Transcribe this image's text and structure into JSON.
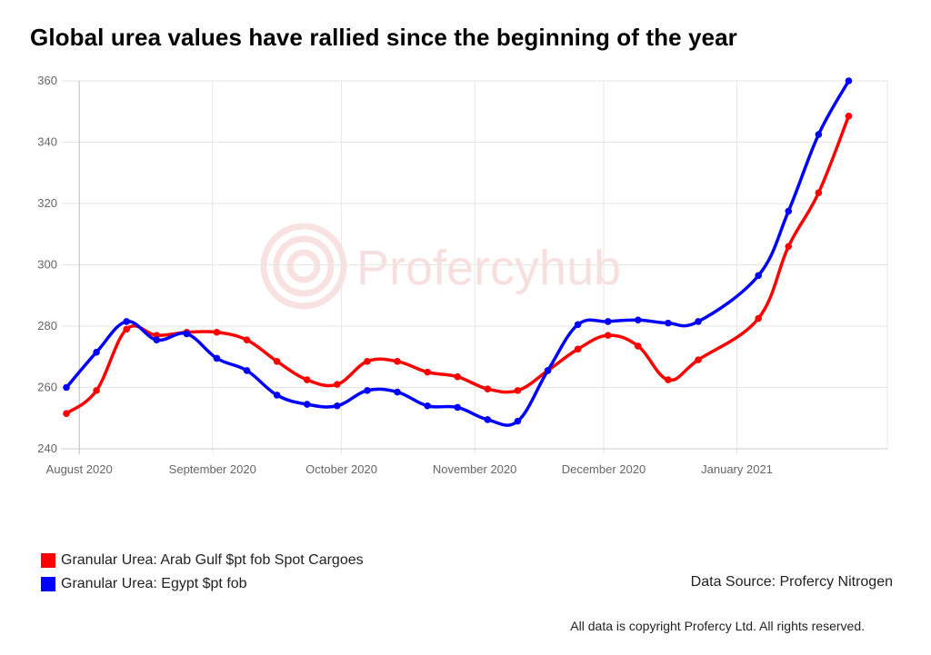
{
  "colors": {
    "arab_gulf": "#ff0000",
    "egypt": "#0000ff",
    "grid": "#e6e6e6",
    "watermark": "#f2c6c6"
  },
  "watermark": "Profercyhub",
  "source": "Data Source: Profercy Nitrogen",
  "copyright": "All data is copyright Profercy Ltd. All rights reserved.",
  "chart_data": {
    "type": "line",
    "title": "Global urea values have rallied since the beginning of the year",
    "xlabel": "",
    "ylabel": "",
    "ylim": [
      240,
      360
    ],
    "yticks": [
      240,
      260,
      280,
      300,
      320,
      340,
      360
    ],
    "x_tick_labels": [
      "August 2020",
      "September 2020",
      "October 2020",
      "November 2020",
      "December 2020",
      "January 2021"
    ],
    "x_tick_dates": [
      "2020-08-01",
      "2020-09-01",
      "2020-10-01",
      "2020-11-01",
      "2020-12-01",
      "2021-01-01"
    ],
    "xlim": [
      "2020-07-29",
      "2021-02-05"
    ],
    "grid": true,
    "legend_position": "bottom-left",
    "series": [
      {
        "name": "Granular Urea: Arab Gulf $pt fob Spot Cargoes",
        "color": "#ff0000",
        "points": [
          [
            "2020-07-29",
            251.5
          ],
          [
            "2020-08-05",
            259
          ],
          [
            "2020-08-12",
            279
          ],
          [
            "2020-08-19",
            277
          ],
          [
            "2020-08-26",
            278
          ],
          [
            "2020-09-02",
            278
          ],
          [
            "2020-09-09",
            275.5
          ],
          [
            "2020-09-16",
            268.5
          ],
          [
            "2020-09-23",
            262.5
          ],
          [
            "2020-09-30",
            261
          ],
          [
            "2020-10-07",
            268.5
          ],
          [
            "2020-10-14",
            268.5
          ],
          [
            "2020-10-21",
            265
          ],
          [
            "2020-10-28",
            263.5
          ],
          [
            "2020-11-04",
            259.5
          ],
          [
            "2020-11-11",
            259
          ],
          [
            "2020-11-18",
            265.5
          ],
          [
            "2020-11-25",
            272.5
          ],
          [
            "2020-12-02",
            277
          ],
          [
            "2020-12-09",
            273.5
          ],
          [
            "2020-12-16",
            262.5
          ],
          [
            "2020-12-23",
            269
          ],
          [
            "2021-01-06",
            282.5
          ],
          [
            "2021-01-13",
            306
          ],
          [
            "2021-01-20",
            323.5
          ],
          [
            "2021-01-27",
            348.5
          ]
        ]
      },
      {
        "name": "Granular Urea: Egypt $pt fob",
        "color": "#0000ff",
        "points": [
          [
            "2020-07-29",
            260
          ],
          [
            "2020-08-05",
            271.5
          ],
          [
            "2020-08-12",
            281.5
          ],
          [
            "2020-08-19",
            275.5
          ],
          [
            "2020-08-26",
            277.5
          ],
          [
            "2020-09-02",
            269.5
          ],
          [
            "2020-09-09",
            265.5
          ],
          [
            "2020-09-16",
            257.5
          ],
          [
            "2020-09-23",
            254.5
          ],
          [
            "2020-09-30",
            254
          ],
          [
            "2020-10-07",
            259
          ],
          [
            "2020-10-14",
            258.5
          ],
          [
            "2020-10-21",
            254
          ],
          [
            "2020-10-28",
            253.5
          ],
          [
            "2020-11-04",
            249.5
          ],
          [
            "2020-11-11",
            249
          ],
          [
            "2020-11-18",
            265.5
          ],
          [
            "2020-11-25",
            280.5
          ],
          [
            "2020-12-02",
            281.5
          ],
          [
            "2020-12-09",
            282
          ],
          [
            "2020-12-16",
            281
          ],
          [
            "2020-12-23",
            281.5
          ],
          [
            "2021-01-06",
            296.5
          ],
          [
            "2021-01-13",
            317.5
          ],
          [
            "2021-01-20",
            342.5
          ],
          [
            "2021-01-27",
            360
          ]
        ]
      }
    ]
  }
}
